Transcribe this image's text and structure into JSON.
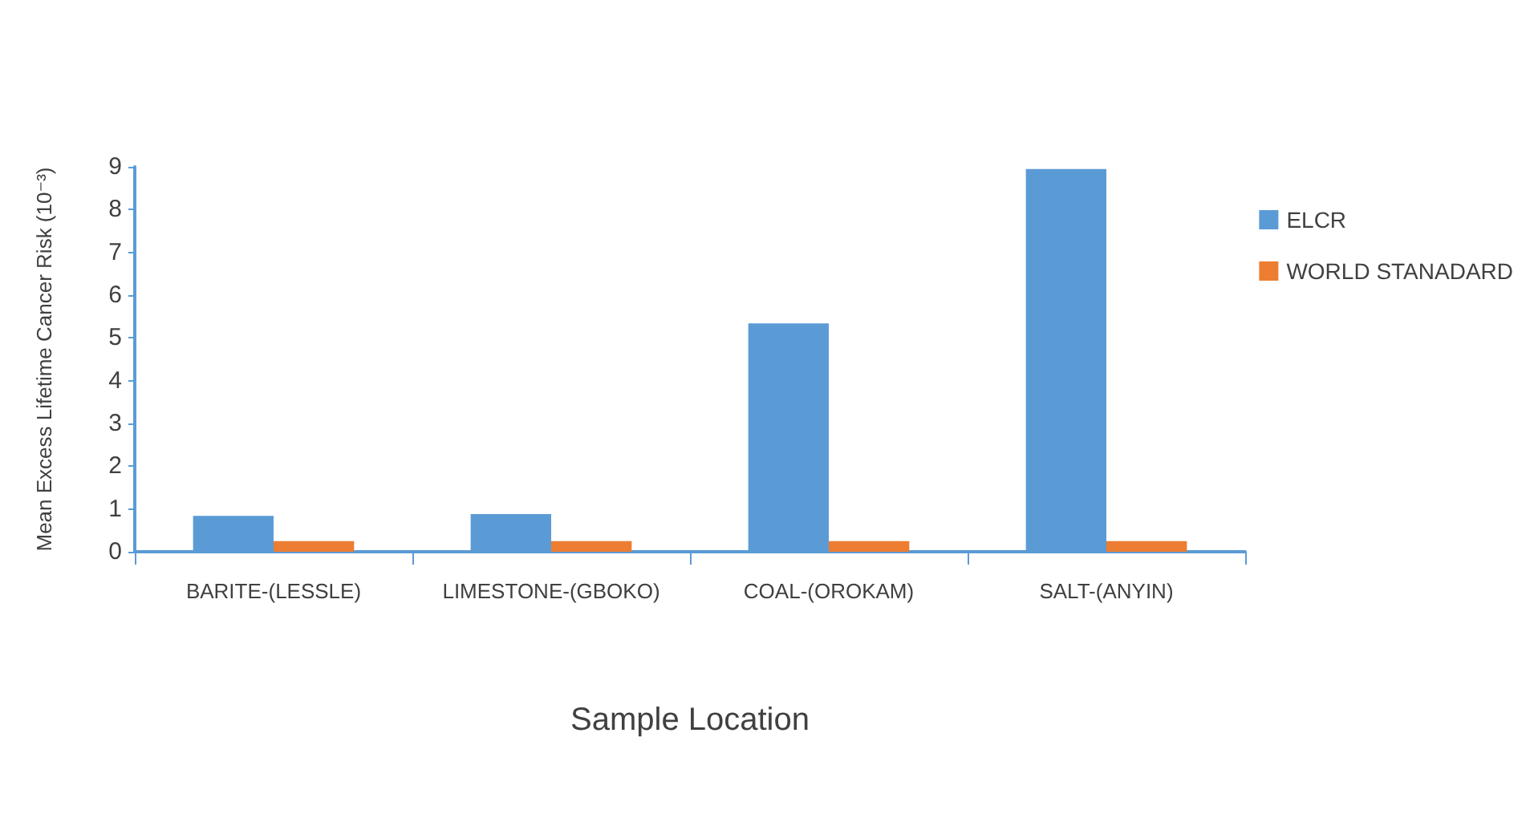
{
  "chart_data": {
    "type": "bar",
    "xlabel": "Sample Location",
    "ylabel": "Mean Excess Lifetime Cancer Risk (10⁻³)",
    "categories": [
      "BARITE-(LESSLE)",
      "LIMESTONE-(GBOKO)",
      "COAL-(OROKAM)",
      "SALT-(ANYIN)"
    ],
    "series": [
      {
        "name": "ELCR",
        "color": "#5b9bd5",
        "values": [
          0.84,
          0.88,
          5.34,
          8.95
        ]
      },
      {
        "name": "WORLD STANADARD",
        "color": "#ed7d31",
        "values": [
          0.25,
          0.25,
          0.25,
          0.25
        ]
      }
    ],
    "ylim": [
      0,
      9
    ],
    "yticks": [
      0,
      1,
      2,
      3,
      4,
      5,
      6,
      7,
      8,
      9
    ],
    "grid": false,
    "legend": "right"
  }
}
